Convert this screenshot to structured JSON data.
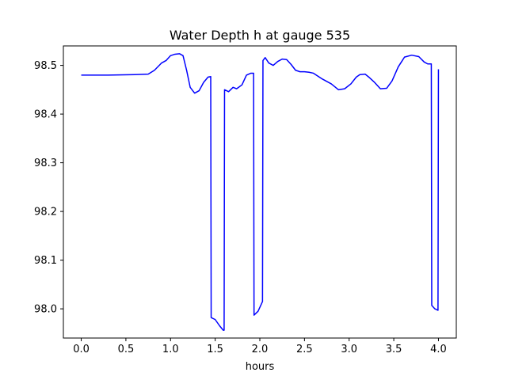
{
  "chart_data": {
    "type": "line",
    "title": "Water Depth h at gauge 535",
    "xlabel": "hours",
    "ylabel": "",
    "xlim": [
      -0.2,
      4.2
    ],
    "ylim": [
      97.94,
      98.54
    ],
    "xticks": [
      0.0,
      0.5,
      1.0,
      1.5,
      2.0,
      2.5,
      3.0,
      3.5,
      4.0
    ],
    "xtick_labels": [
      "0.0",
      "0.5",
      "1.0",
      "1.5",
      "2.0",
      "2.5",
      "3.0",
      "3.5",
      "4.0"
    ],
    "yticks": [
      98.0,
      98.1,
      98.2,
      98.3,
      98.4,
      98.5
    ],
    "ytick_labels": [
      "98.0",
      "98.1",
      "98.2",
      "98.3",
      "98.4",
      "98.5"
    ],
    "grid": false,
    "series": [
      {
        "color": "#0000ff",
        "x": [
          0.0,
          0.3,
          0.6,
          0.75,
          0.82,
          0.9,
          0.95,
          1.0,
          1.05,
          1.1,
          1.14,
          1.18,
          1.22,
          1.27,
          1.32,
          1.37,
          1.42,
          1.45,
          1.455,
          1.5,
          1.55,
          1.59,
          1.6,
          1.605,
          1.65,
          1.7,
          1.74,
          1.8,
          1.85,
          1.9,
          1.93,
          1.935,
          1.98,
          2.03,
          2.035,
          2.06,
          2.1,
          2.15,
          2.2,
          2.25,
          2.3,
          2.35,
          2.4,
          2.45,
          2.5,
          2.55,
          2.6,
          2.7,
          2.8,
          2.88,
          2.95,
          3.02,
          3.08,
          3.12,
          3.18,
          3.22,
          3.28,
          3.35,
          3.42,
          3.48,
          3.55,
          3.62,
          3.7,
          3.78,
          3.84,
          3.88,
          3.92,
          3.925,
          3.96,
          3.995,
          4.0
        ],
        "y": [
          98.48,
          98.48,
          98.481,
          98.482,
          98.49,
          98.505,
          98.51,
          98.52,
          98.523,
          98.524,
          98.52,
          98.49,
          98.455,
          98.443,
          98.448,
          98.465,
          98.476,
          98.477,
          97.982,
          97.978,
          97.965,
          97.956,
          97.956,
          98.45,
          98.446,
          98.455,
          98.452,
          98.46,
          98.48,
          98.484,
          98.484,
          97.987,
          97.995,
          98.015,
          98.51,
          98.516,
          98.505,
          98.5,
          98.508,
          98.513,
          98.512,
          98.502,
          98.49,
          98.487,
          98.487,
          98.486,
          98.484,
          98.472,
          98.462,
          98.45,
          98.452,
          98.462,
          98.476,
          98.481,
          98.482,
          98.476,
          98.466,
          98.452,
          98.453,
          98.468,
          98.497,
          98.517,
          98.521,
          98.518,
          98.507,
          98.503,
          98.503,
          98.007,
          98.0,
          97.997,
          98.492
        ]
      }
    ]
  }
}
